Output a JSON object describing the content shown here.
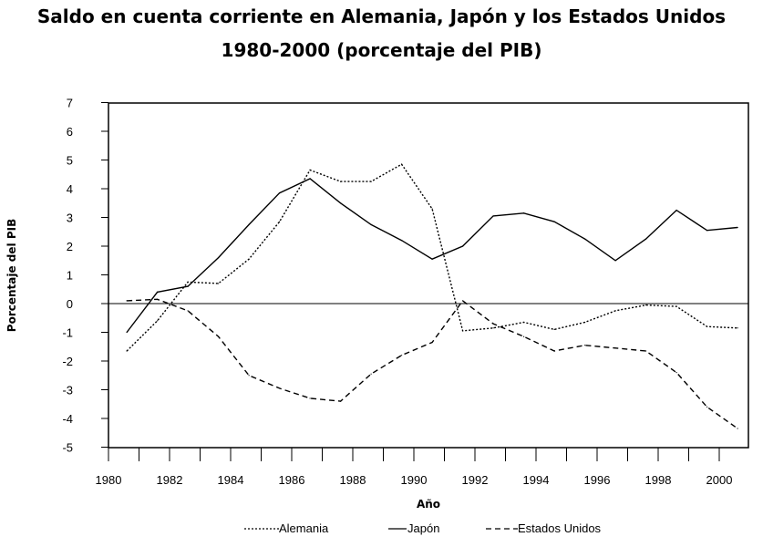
{
  "chart_data": {
    "type": "line",
    "title_line1": "Saldo en cuenta corriente en Alemania, Japón y los Estados Unidos",
    "title_line2": "1980-2000 (porcentaje del PIB)",
    "xlabel": "Año",
    "ylabel": "Porcentaje del PIB",
    "xlim": [
      1980,
      2001
    ],
    "ylim": [
      -5,
      7
    ],
    "xticks": [
      1980,
      1981,
      1982,
      1983,
      1984,
      1985,
      1986,
      1987,
      1988,
      1989,
      1990,
      1991,
      1992,
      1993,
      1994,
      1995,
      1996,
      1997,
      1998,
      1999,
      2000
    ],
    "xtick_labels": [
      "1980",
      "1982",
      "1984",
      "1986",
      "1988",
      "1990",
      "1992",
      "1994",
      "1996",
      "1998",
      "2000"
    ],
    "yticks": [
      7,
      6,
      5,
      4,
      3,
      2,
      1,
      0,
      -1,
      -2,
      -3,
      -4,
      -5
    ],
    "legend_position": "bottom",
    "grid": false,
    "x": [
      1980.6,
      1981.6,
      1982.6,
      1983.6,
      1984.6,
      1985.6,
      1986.6,
      1987.6,
      1988.6,
      1989.6,
      1990.6,
      1991.6,
      1992.6,
      1993.6,
      1994.6,
      1995.6,
      1996.6,
      1997.6,
      1998.6,
      1999.6,
      2000.6
    ],
    "series": [
      {
        "name": "Alemania",
        "dash": "2,2",
        "values": [
          -1.65,
          -0.6,
          0.75,
          0.7,
          1.55,
          2.85,
          4.65,
          4.25,
          4.25,
          4.85,
          3.3,
          -0.95,
          -0.85,
          -0.65,
          -0.9,
          -0.65,
          -0.25,
          -0.05,
          -0.1,
          -0.8,
          -0.85
        ]
      },
      {
        "name": "Japón",
        "dash": "",
        "values": [
          -1.0,
          0.4,
          0.6,
          1.6,
          2.75,
          3.85,
          4.35,
          3.5,
          2.75,
          2.2,
          1.55,
          2.0,
          3.05,
          3.15,
          2.85,
          2.25,
          1.5,
          2.25,
          3.25,
          2.55,
          2.65
        ]
      },
      {
        "name": "Estados Unidos",
        "dash": "6,4",
        "values": [
          0.1,
          0.15,
          -0.25,
          -1.15,
          -2.5,
          -2.95,
          -3.3,
          -3.4,
          -2.45,
          -1.8,
          -1.35,
          0.1,
          -0.7,
          -1.15,
          -1.65,
          -1.45,
          -1.55,
          -1.65,
          -2.4,
          -3.6,
          -4.35
        ]
      }
    ]
  }
}
